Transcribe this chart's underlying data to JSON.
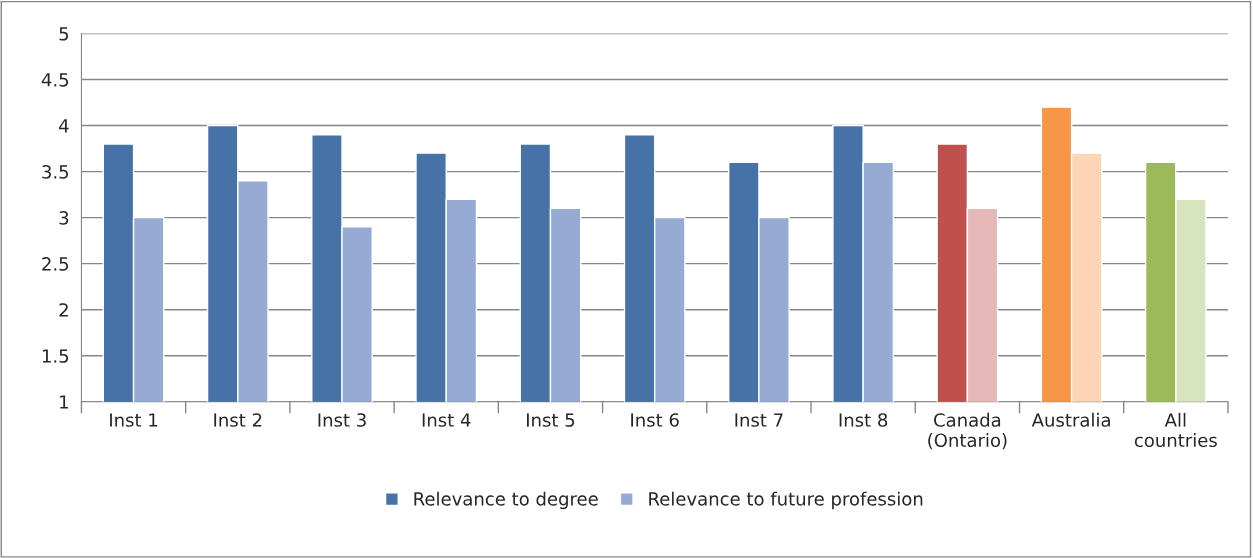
{
  "chart_data": {
    "type": "bar",
    "categories": [
      "Inst 1",
      "Inst 2",
      "Inst 3",
      "Inst 4",
      "Inst 5",
      "Inst 6",
      "Inst 7",
      "Inst 8",
      "Canada\n(Ontario)",
      "Australia",
      "All\ncountries"
    ],
    "series": [
      {
        "name": "Relevance to degree",
        "color": "#4672a8",
        "colors": [
          "#4672a8",
          "#4672a8",
          "#4672a8",
          "#4672a8",
          "#4672a8",
          "#4672a8",
          "#4672a8",
          "#4672a8",
          "#c0504d",
          "#f79646",
          "#9bbb59"
        ],
        "values": [
          3.8,
          4.0,
          3.9,
          3.7,
          3.8,
          3.9,
          3.6,
          4.0,
          3.8,
          4.2,
          3.6
        ]
      },
      {
        "name": "Relevance to future profession",
        "color": "#95abd3",
        "colors": [
          "#95abd3",
          "#95abd3",
          "#95abd3",
          "#95abd3",
          "#95abd3",
          "#95abd3",
          "#95abd3",
          "#95abd3",
          "#e6b9b8",
          "#fcd5b5",
          "#d7e4bd"
        ],
        "values": [
          3.0,
          3.4,
          2.9,
          3.2,
          3.1,
          3.0,
          3.0,
          3.6,
          3.1,
          3.7,
          3.2
        ]
      }
    ],
    "ylim": [
      1,
      5
    ],
    "yticks": [
      1,
      1.5,
      2,
      2.5,
      3,
      3.5,
      4,
      4.5,
      5
    ],
    "grid": "y",
    "legend": "bottom"
  }
}
